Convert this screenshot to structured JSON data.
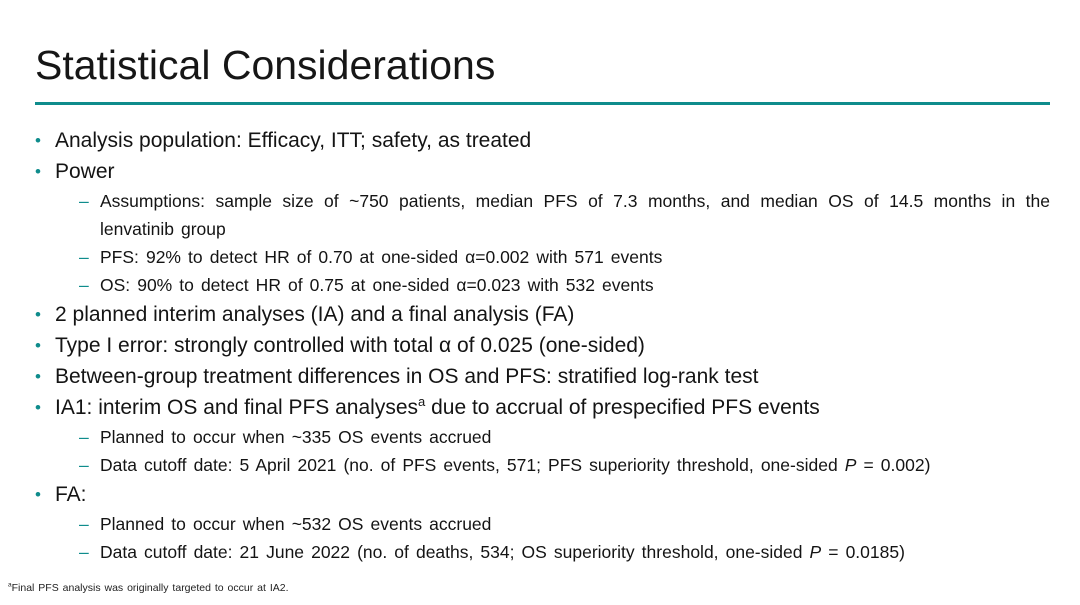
{
  "slide": {
    "title": "Statistical Considerations",
    "accent_color": "#0F8C8C",
    "background_color": "#ffffff"
  },
  "bullets": [
    {
      "level": 1,
      "parts": [
        {
          "t": "Analysis population: Efficacy, ITT; safety, as treated"
        }
      ]
    },
    {
      "level": 1,
      "parts": [
        {
          "t": "Power"
        }
      ]
    },
    {
      "level": 2,
      "parts": [
        {
          "t": "Assumptions: sample size of ~750 patients, median PFS of 7.3 months, and median OS of 14.5 months in the lenvatinib group"
        }
      ]
    },
    {
      "level": 2,
      "parts": [
        {
          "t": "PFS: 92% to detect HR of 0.70 at one-sided α=0.002 with 571 events"
        }
      ]
    },
    {
      "level": 2,
      "parts": [
        {
          "t": "OS: 90% to detect HR of 0.75 at one-sided α=0.023 with 532 events"
        }
      ]
    },
    {
      "level": 1,
      "parts": [
        {
          "t": "2 planned interim analyses (IA) and a final analysis (FA)"
        }
      ]
    },
    {
      "level": 1,
      "parts": [
        {
          "t": "Type I error: strongly controlled with total α of 0.025 (one-sided)"
        }
      ]
    },
    {
      "level": 1,
      "parts": [
        {
          "t": "Between-group treatment differences in OS and PFS: stratified log-rank test"
        }
      ]
    },
    {
      "level": 1,
      "parts": [
        {
          "t": "IA1: interim OS and final PFS analyses"
        },
        {
          "t": "a",
          "s": "sup"
        },
        {
          "t": " due to accrual of prespecified PFS events"
        }
      ]
    },
    {
      "level": 2,
      "parts": [
        {
          "t": "Planned to occur when ~335 OS events accrued"
        }
      ]
    },
    {
      "level": 2,
      "parts": [
        {
          "t": "Data cutoff date: 5 April 2021 (no. of PFS events, 571; PFS superiority threshold, one-sided "
        },
        {
          "t": "P",
          "s": "italic"
        },
        {
          "t": " = 0.002)"
        }
      ]
    },
    {
      "level": 1,
      "parts": [
        {
          "t": "FA:"
        }
      ]
    },
    {
      "level": 2,
      "parts": [
        {
          "t": "Planned to occur when ~532 OS events accrued"
        }
      ]
    },
    {
      "level": 2,
      "parts": [
        {
          "t": "Data cutoff date: 21 June 2022 (no. of deaths, 534; OS superiority threshold, one-sided "
        },
        {
          "t": "P",
          "s": "italic"
        },
        {
          "t": " = 0.0185)"
        }
      ]
    }
  ],
  "footnote": {
    "marker": "a",
    "text": "Final PFS analysis was originally targeted to occur at IA2."
  },
  "markers": {
    "level1_glyph": "•",
    "level2_glyph": "–"
  }
}
